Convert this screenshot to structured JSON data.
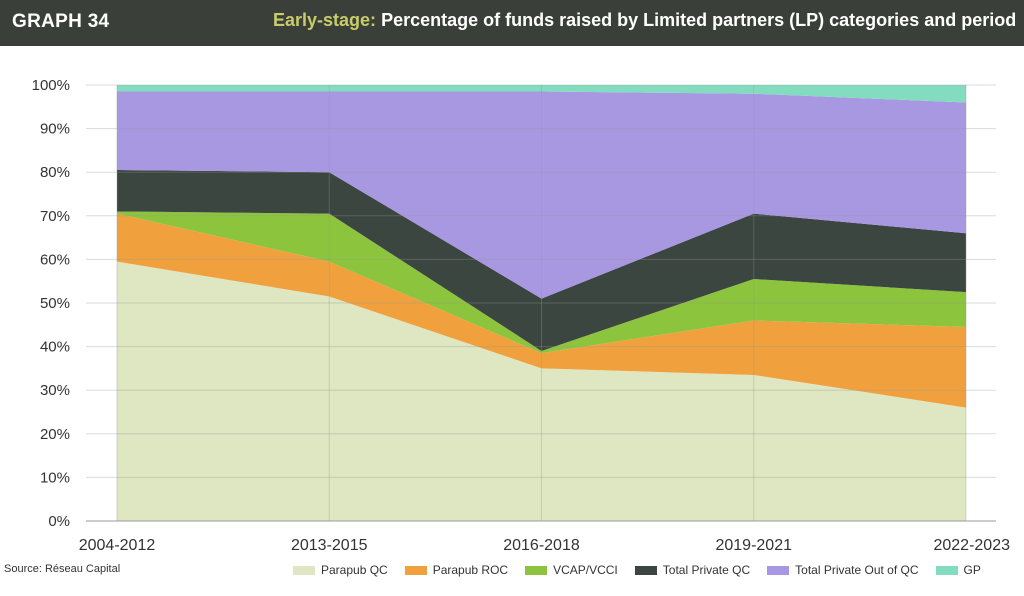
{
  "header": {
    "graph_number": "GRAPH 34",
    "title_accent": "Early-stage:",
    "title_rest": "Percentage of funds raised by Limited partners (LP) categories and period"
  },
  "source": "Source: Réseau Capital",
  "colors": {
    "header_bg": "#3a4039",
    "accent": "#c8cc6a"
  },
  "chart_data": {
    "type": "area",
    "stacked": true,
    "categories": [
      "2004-2012",
      "2013-2015",
      "2016-2018",
      "2019-2021",
      "2022-2023"
    ],
    "y_ticks": [
      "0%",
      "10%",
      "20%",
      "30%",
      "40%",
      "50%",
      "60%",
      "70%",
      "80%",
      "90%",
      "100%"
    ],
    "ylim": [
      0,
      100
    ],
    "grid": true,
    "legend_position": "bottom",
    "series": [
      {
        "name": "Parapub QC",
        "color": "#dfe6c2",
        "values": [
          59.5,
          51.5,
          35,
          33.5,
          26
        ]
      },
      {
        "name": "Parapub ROC",
        "color": "#f0a13e",
        "values": [
          11,
          8,
          3.5,
          12.5,
          18.5
        ]
      },
      {
        "name": "VCAP/VCCI",
        "color": "#8dc43d",
        "values": [
          0.5,
          11,
          0.5,
          9.5,
          8
        ]
      },
      {
        "name": "Total Private QC",
        "color": "#3c4640",
        "values": [
          9.5,
          9.5,
          12,
          15,
          13.5
        ]
      },
      {
        "name": "Total Private Out of QC",
        "color": "#a898e2",
        "values": [
          18,
          18.5,
          47.5,
          27.5,
          30
        ]
      },
      {
        "name": "GP",
        "color": "#84dcc0",
        "values": [
          1.5,
          1.5,
          1.5,
          2,
          4
        ]
      }
    ]
  }
}
